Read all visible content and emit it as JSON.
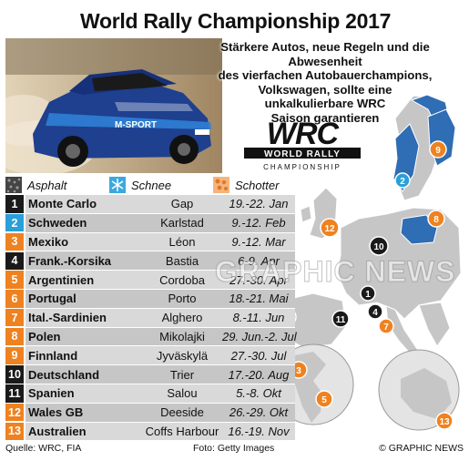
{
  "title": "World Rally Championship 2017",
  "subtitle_lines": [
    "Stärkere Autos, neue Regeln und die Abwesenheit",
    "des vierfachen Autobauerchampions,",
    "Volkswagen, sollte eine",
    "unkalkulierbare WRC",
    "Saison garantieren"
  ],
  "logo": {
    "text": "WRC",
    "line1": "WORLD RALLY",
    "line2": "CHAMPIONSHIP"
  },
  "legend": [
    {
      "label": "Asphalt",
      "color": "#555555",
      "icon": "asphalt-icon"
    },
    {
      "label": "Schnee",
      "color": "#3aa9df",
      "icon": "snowflake-icon"
    },
    {
      "label": "Schotter",
      "color": "#f08a2c",
      "icon": "gravel-icon"
    }
  ],
  "colors": {
    "asphalt": "#1a1a1a",
    "snow": "#2a9fd8",
    "gravel": "#ef8220",
    "row_light": "#d9d9d9",
    "row_dark": "#c6c6c6",
    "map_land": "#c8c8c8",
    "map_sea": "#ffffff"
  },
  "rallies": [
    {
      "num": "1",
      "name": "Monte Carlo",
      "location": "Gap",
      "dates": "19.-22. Jan",
      "surface": "asphalt"
    },
    {
      "num": "2",
      "name": "Schweden",
      "location": "Karlstad",
      "dates": "9.-12. Feb",
      "surface": "snow"
    },
    {
      "num": "3",
      "name": "Mexiko",
      "location": "Léon",
      "dates": "9.-12. Mar",
      "surface": "gravel"
    },
    {
      "num": "4",
      "name": "Frank.-Korsika",
      "location": "Bastia",
      "dates": "6-9. Apr",
      "surface": "asphalt"
    },
    {
      "num": "5",
      "name": "Argentinien",
      "location": "Cordoba",
      "dates": "27.-30. Apr",
      "surface": "gravel"
    },
    {
      "num": "6",
      "name": "Portugal",
      "location": "Porto",
      "dates": "18.-21. Mai",
      "surface": "gravel"
    },
    {
      "num": "7",
      "name": "Ital.-Sardinien",
      "location": "Alghero",
      "dates": "8.-11. Jun",
      "surface": "gravel"
    },
    {
      "num": "8",
      "name": "Polen",
      "location": "Mikolajki",
      "dates": "29. Jun.-2. Jul",
      "surface": "gravel"
    },
    {
      "num": "9",
      "name": "Finnland",
      "location": "Jyväskylä",
      "dates": "27.-30. Jul",
      "surface": "gravel"
    },
    {
      "num": "10",
      "name": "Deutschland",
      "location": "Trier",
      "dates": "17.-20. Aug",
      "surface": "asphalt"
    },
    {
      "num": "11",
      "name": "Spanien",
      "location": "Salou",
      "dates": "5.-8. Okt",
      "surface": "asphalt"
    },
    {
      "num": "12",
      "name": "Wales GB",
      "location": "Deeside",
      "dates": "26.-29. Okt",
      "surface": "gravel"
    },
    {
      "num": "13",
      "name": "Australien",
      "location": "Coffs Harbour",
      "dates": "16.-19. Nov",
      "surface": "gravel"
    }
  ],
  "watermark": "GRAPHIC NEWS",
  "footer": {
    "source": "Quelle: WRC, FIA",
    "photo": "Foto: Getty Images",
    "credit": "© GRAPHIC NEWS"
  }
}
